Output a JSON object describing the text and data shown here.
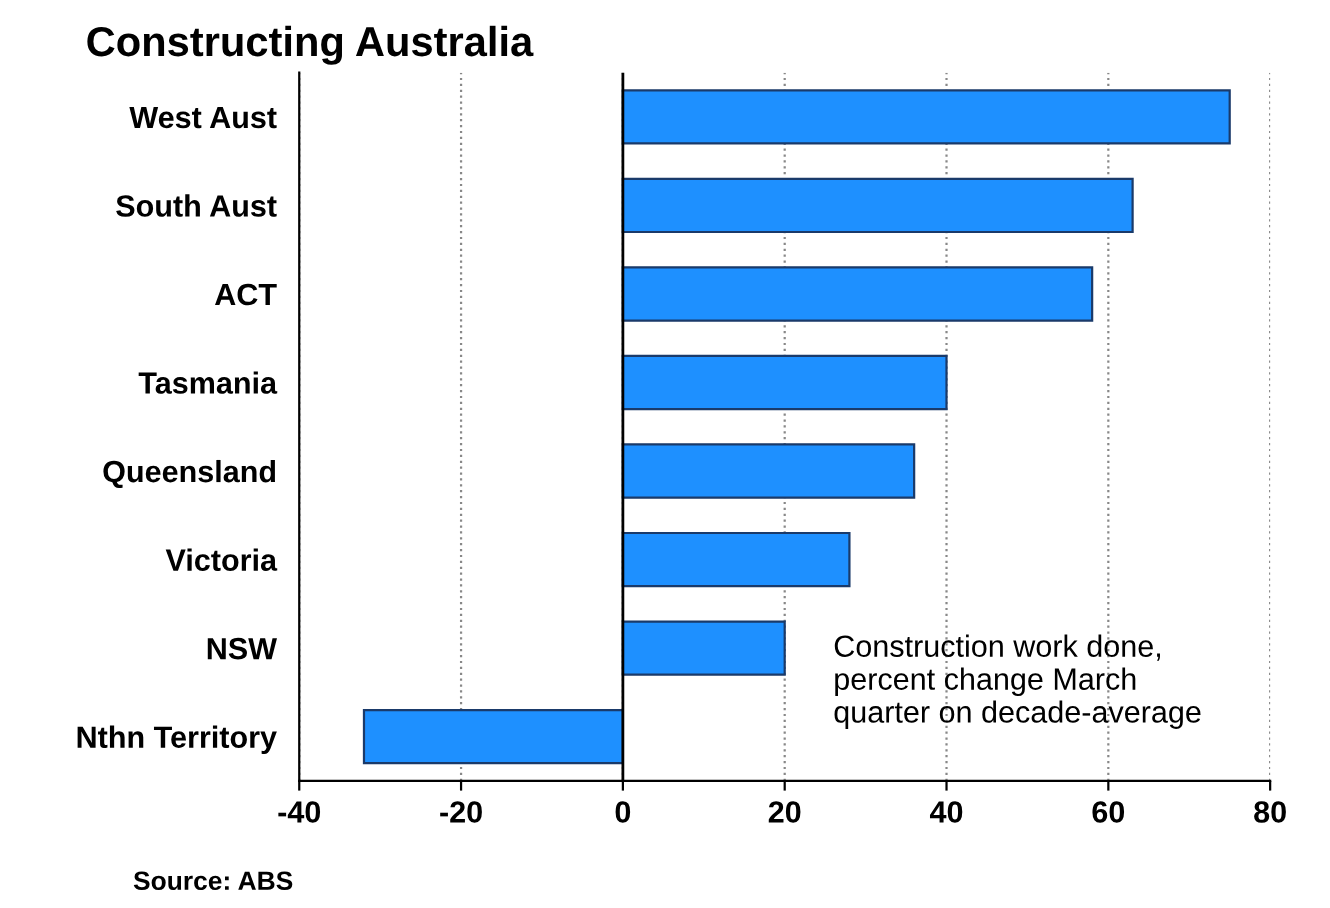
{
  "chart_data": {
    "type": "bar",
    "orientation": "horizontal",
    "title": "Constructing Australia",
    "categories": [
      "West Aust",
      "South Aust",
      "ACT",
      "Tasmania",
      "Queensland",
      "Victoria",
      "NSW",
      "Nthn Territory"
    ],
    "values": [
      75,
      63,
      58,
      40,
      36,
      28,
      20,
      -32
    ],
    "color": "#1e90ff",
    "xlim": [
      -40,
      80
    ],
    "xticks": [
      -40,
      -20,
      0,
      20,
      40,
      60,
      80
    ],
    "grid": "x",
    "ref_lines": [
      {
        "axis": "x",
        "value": 0,
        "label": null,
        "color": "#000000",
        "line_style": "solid"
      }
    ],
    "annotations": [
      "Construction work done,\npercent change March\nquarter on decade-average",
      "Source: ABS"
    ]
  }
}
